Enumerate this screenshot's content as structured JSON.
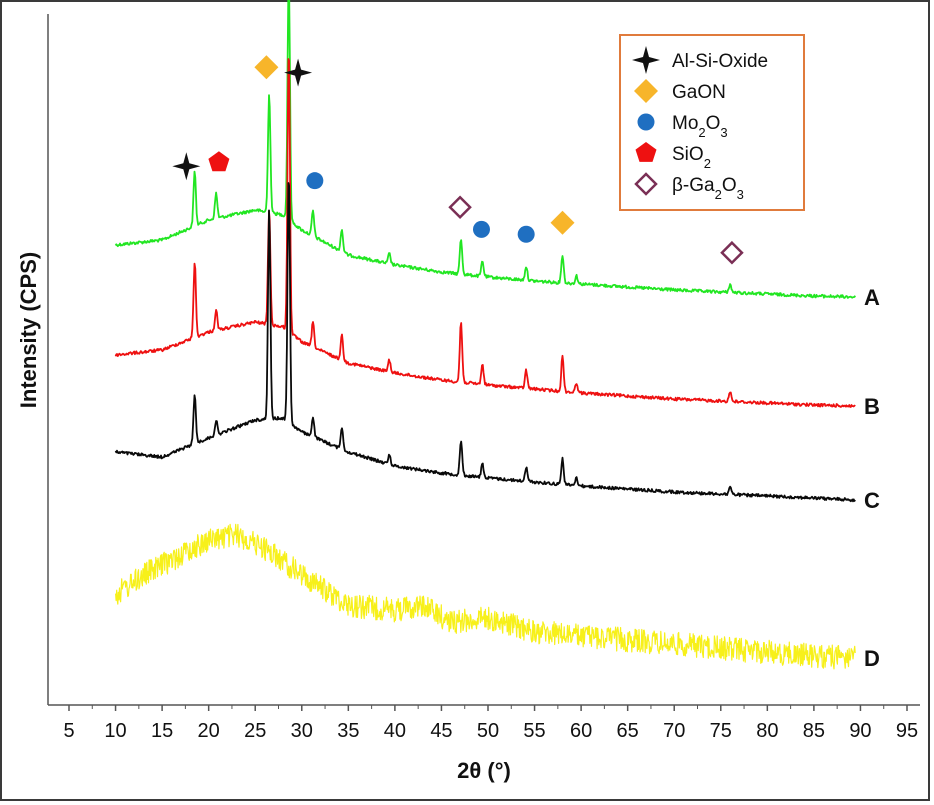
{
  "chart_data": {
    "type": "line",
    "title": "",
    "xlabel": "2θ (°)",
    "ylabel": "Intensity (CPS)",
    "xlim": [
      3,
      97
    ],
    "x_ticks": [
      5,
      10,
      15,
      20,
      25,
      30,
      35,
      40,
      45,
      50,
      55,
      60,
      65,
      70,
      75,
      80,
      85,
      90,
      95
    ],
    "y_ticks_shown": false,
    "grid": false,
    "series": [
      {
        "name": "A",
        "color": "#22e622",
        "baseline": [
          [
            10,
            245
          ],
          [
            15,
            240
          ],
          [
            20,
            220
          ],
          [
            25,
            210
          ],
          [
            28,
            215
          ],
          [
            30,
            230
          ],
          [
            35,
            255
          ],
          [
            40,
            265
          ],
          [
            45,
            272
          ],
          [
            50,
            277
          ],
          [
            55,
            281
          ],
          [
            60,
            284
          ],
          [
            65,
            287
          ],
          [
            70,
            290
          ],
          [
            75,
            292
          ],
          [
            80,
            294
          ],
          [
            85,
            296
          ],
          [
            89.5,
            297
          ]
        ],
        "peaks": [
          [
            18.5,
            55
          ],
          [
            20.8,
            25
          ],
          [
            26.5,
            120
          ],
          [
            28.6,
            245
          ],
          [
            31.2,
            25
          ],
          [
            34.3,
            22
          ],
          [
            39.4,
            10
          ],
          [
            47.1,
            35
          ],
          [
            49.4,
            15
          ],
          [
            54.1,
            14
          ],
          [
            58.0,
            28
          ],
          [
            59.5,
            8
          ],
          [
            76.0,
            8
          ]
        ]
      },
      {
        "name": "B",
        "color": "#ee1111",
        "baseline": [
          [
            10,
            355
          ],
          [
            15,
            350
          ],
          [
            20,
            332
          ],
          [
            25,
            322
          ],
          [
            28,
            327
          ],
          [
            30,
            342
          ],
          [
            35,
            363
          ],
          [
            40,
            373
          ],
          [
            45,
            380
          ],
          [
            50,
            385
          ],
          [
            55,
            389
          ],
          [
            60,
            393
          ],
          [
            65,
            396
          ],
          [
            70,
            399
          ],
          [
            75,
            401
          ],
          [
            80,
            403
          ],
          [
            85,
            405
          ],
          [
            89.5,
            406
          ]
        ],
        "peaks": [
          [
            18.5,
            75
          ],
          [
            20.8,
            20
          ],
          [
            26.5,
            115
          ],
          [
            28.6,
            285
          ],
          [
            31.2,
            25
          ],
          [
            34.3,
            25
          ],
          [
            39.4,
            12
          ],
          [
            47.1,
            60
          ],
          [
            49.4,
            20
          ],
          [
            54.1,
            18
          ],
          [
            58.0,
            35
          ],
          [
            59.5,
            10
          ],
          [
            76.0,
            10
          ]
        ]
      },
      {
        "name": "C",
        "color": "#0a0a0a",
        "baseline": [
          [
            10,
            452
          ],
          [
            15,
            457
          ],
          [
            20,
            438
          ],
          [
            25,
            420
          ],
          [
            28,
            418
          ],
          [
            30,
            432
          ],
          [
            35,
            452
          ],
          [
            40,
            466
          ],
          [
            45,
            473
          ],
          [
            50,
            478
          ],
          [
            55,
            482
          ],
          [
            60,
            486
          ],
          [
            65,
            489
          ],
          [
            70,
            492
          ],
          [
            75,
            494
          ],
          [
            80,
            496
          ],
          [
            85,
            498
          ],
          [
            89.5,
            500
          ]
        ],
        "peaks": [
          [
            18.5,
            50
          ],
          [
            20.8,
            15
          ],
          [
            26.5,
            210
          ],
          [
            28.6,
            250
          ],
          [
            31.2,
            20
          ],
          [
            34.3,
            22
          ],
          [
            39.4,
            10
          ],
          [
            47.1,
            35
          ],
          [
            49.4,
            14
          ],
          [
            54.1,
            14
          ],
          [
            58.0,
            26
          ],
          [
            59.5,
            8
          ],
          [
            76.0,
            8
          ]
        ]
      },
      {
        "name": "D",
        "color": "#f7f01a",
        "baseline": [
          [
            10,
            595
          ],
          [
            13,
            575
          ],
          [
            17,
            555
          ],
          [
            20,
            540
          ],
          [
            23,
            535
          ],
          [
            26,
            548
          ],
          [
            30,
            575
          ],
          [
            35,
            605
          ],
          [
            40,
            610
          ],
          [
            43,
            605
          ],
          [
            46,
            622
          ],
          [
            50,
            618
          ],
          [
            55,
            632
          ],
          [
            60,
            636
          ],
          [
            65,
            640
          ],
          [
            70,
            644
          ],
          [
            75,
            648
          ],
          [
            80,
            652
          ],
          [
            85,
            656
          ],
          [
            89.5,
            658
          ]
        ],
        "peaks": []
      }
    ],
    "legend": {
      "placement": "top-right",
      "entries": [
        {
          "label": "Al-Si-Oxide",
          "marker": "four-point-star",
          "color": "#111111"
        },
        {
          "label": "GaON",
          "marker": "diamond",
          "color": "#f7b52a"
        },
        {
          "label": "Mo2O3",
          "marker": "circle",
          "color": "#1f6fc1"
        },
        {
          "label": "SiO2",
          "marker": "pentagon",
          "color": "#ee1111"
        },
        {
          "label": "β-Ga2O3",
          "marker": "open-diamond",
          "color": "#7a2f55"
        }
      ],
      "border_color": "#e07b3c"
    },
    "phase_markers": [
      {
        "phase": "Al-Si-Oxide",
        "x": 17.6
      },
      {
        "phase": "Al-Si-Oxide",
        "x": 29.6
      },
      {
        "phase": "GaON",
        "x": 26.2
      },
      {
        "phase": "GaON",
        "x": 58.0
      },
      {
        "phase": "Mo2O3",
        "x": 31.4
      },
      {
        "phase": "Mo2O3",
        "x": 49.3
      },
      {
        "phase": "Mo2O3",
        "x": 54.1
      },
      {
        "phase": "SiO2",
        "x": 21.1
      },
      {
        "phase": "β-Ga2O3",
        "x": 47.0
      },
      {
        "phase": "β-Ga2O3",
        "x": 76.2
      }
    ]
  }
}
